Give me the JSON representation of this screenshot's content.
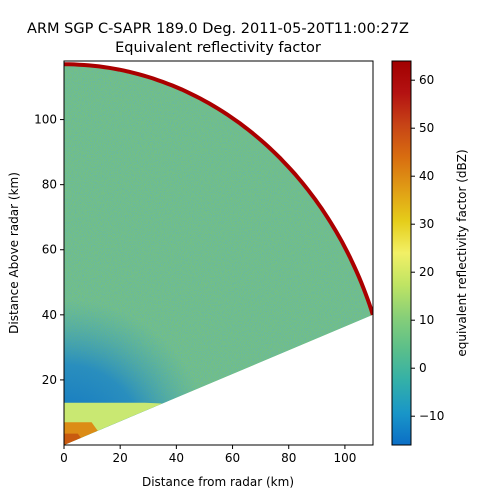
{
  "chart_data": {
    "type": "heatmap",
    "title_line1": "ARM SGP C-SAPR 189.0 Deg. 2011-05-20T11:00:27Z",
    "title_line2": "Equivalent reflectivity factor",
    "xlabel": "Distance from radar (km)",
    "ylabel": "Distance Above radar  (km)",
    "xlim": [
      0,
      110
    ],
    "ylim": [
      0,
      118
    ],
    "x_ticks": [
      0,
      20,
      40,
      60,
      80,
      100
    ],
    "y_ticks": [
      20,
      40,
      60,
      80,
      100
    ],
    "field": {
      "geometry": "rhi sector",
      "max_range_km": 117,
      "min_elevation_deg": 20,
      "max_elevation_deg": 90
    },
    "features": [
      {
        "description": "ground clutter near radar",
        "x_range_km": [
          0,
          12
        ],
        "y_range_km": [
          0,
          13
        ],
        "value_dbz_range": [
          20,
          45
        ]
      },
      {
        "description": "low-level echo",
        "x_range_km": [
          0,
          35
        ],
        "y_range_km": [
          8,
          30
        ],
        "value_dbz_range": [
          -10,
          -5
        ]
      },
      {
        "description": "range-end clutter ring",
        "range_km": 117,
        "value_dbz": 60
      },
      {
        "description": "background noise",
        "value_dbz_range": [
          0,
          8
        ]
      }
    ],
    "colorbar": {
      "label": "equivalent reflectivity factor (dBZ)",
      "vmin": -16,
      "vmax": 64,
      "ticks": [
        -10,
        0,
        10,
        20,
        30,
        40,
        50,
        60
      ],
      "colormap": [
        "#0b6ec6",
        "#1996c8",
        "#33b0a8",
        "#5bbf8a",
        "#87cf78",
        "#bfe463",
        "#f2f066",
        "#e5cd1a",
        "#e09c15",
        "#d86d10",
        "#c74416",
        "#b41212",
        "#a10000"
      ]
    }
  }
}
